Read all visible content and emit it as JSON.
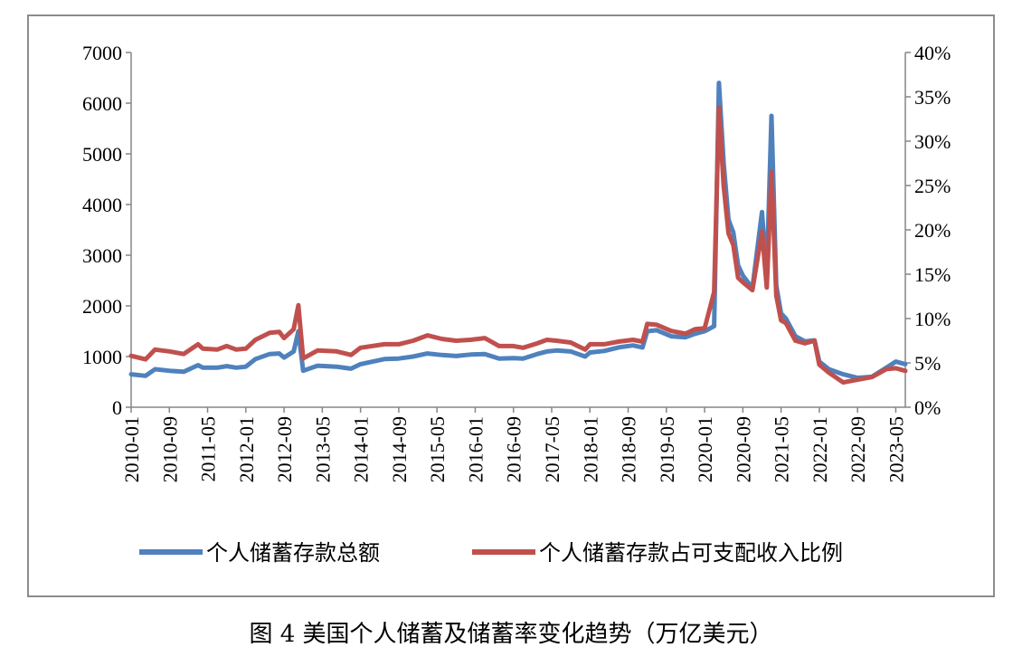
{
  "caption": "图 4 美国个人储蓄及储蓄率变化趋势（万亿美元）",
  "chart_data": {
    "type": "line",
    "title": "",
    "xlabel": "",
    "ylabel": "",
    "y_left_lim": [
      0,
      7000
    ],
    "y_left_ticks": [
      "0",
      "1000",
      "2000",
      "3000",
      "4000",
      "5000",
      "6000",
      "7000"
    ],
    "y_right_lim": [
      0,
      40
    ],
    "y_right_ticks": [
      "0%",
      "5%",
      "10%",
      "15%",
      "20%",
      "25%",
      "30%",
      "35%",
      "40%"
    ],
    "x_tick_labels": [
      "2010-01",
      "2010-09",
      "2011-05",
      "2012-01",
      "2012-09",
      "2013-05",
      "2014-01",
      "2014-09",
      "2015-05",
      "2016-01",
      "2016-09",
      "2017-05",
      "2018-01",
      "2018-09",
      "2019-05",
      "2020-01",
      "2020-09",
      "2021-05",
      "2022-01",
      "2022-09",
      "2023-05"
    ],
    "x_start": "2010-01",
    "grid": false,
    "legend_position": "bottom",
    "series": [
      {
        "name": "个人储蓄存款总额",
        "axis": "left",
        "color": "#4f81bd",
        "points": [
          [
            "2010-01",
            650
          ],
          [
            "2010-04",
            620
          ],
          [
            "2010-06",
            750
          ],
          [
            "2010-09",
            720
          ],
          [
            "2010-12",
            700
          ],
          [
            "2011-03",
            830
          ],
          [
            "2011-04",
            780
          ],
          [
            "2011-07",
            780
          ],
          [
            "2011-09",
            810
          ],
          [
            "2011-11",
            780
          ],
          [
            "2012-01",
            800
          ],
          [
            "2012-03",
            950
          ],
          [
            "2012-06",
            1050
          ],
          [
            "2012-08",
            1060
          ],
          [
            "2012-09",
            980
          ],
          [
            "2012-11",
            1100
          ],
          [
            "2012-12",
            1500
          ],
          [
            "2013-01",
            720
          ],
          [
            "2013-04",
            820
          ],
          [
            "2013-08",
            800
          ],
          [
            "2013-11",
            760
          ],
          [
            "2014-01",
            850
          ],
          [
            "2014-06",
            950
          ],
          [
            "2014-09",
            960
          ],
          [
            "2014-12",
            1000
          ],
          [
            "2015-03",
            1060
          ],
          [
            "2015-06",
            1030
          ],
          [
            "2015-09",
            1010
          ],
          [
            "2015-12",
            1040
          ],
          [
            "2016-03",
            1050
          ],
          [
            "2016-06",
            960
          ],
          [
            "2016-09",
            970
          ],
          [
            "2016-11",
            960
          ],
          [
            "2017-02",
            1050
          ],
          [
            "2017-04",
            1100
          ],
          [
            "2017-06",
            1120
          ],
          [
            "2017-09",
            1100
          ],
          [
            "2017-12",
            1000
          ],
          [
            "2018-01",
            1080
          ],
          [
            "2018-04",
            1110
          ],
          [
            "2018-07",
            1180
          ],
          [
            "2018-10",
            1220
          ],
          [
            "2018-12",
            1180
          ],
          [
            "2019-01",
            1500
          ],
          [
            "2019-03",
            1520
          ],
          [
            "2019-06",
            1400
          ],
          [
            "2019-09",
            1380
          ],
          [
            "2019-11",
            1450
          ],
          [
            "2020-01",
            1500
          ],
          [
            "2020-03",
            1600
          ],
          [
            "2020-04",
            6400
          ],
          [
            "2020-05",
            4800
          ],
          [
            "2020-06",
            3700
          ],
          [
            "2020-07",
            3450
          ],
          [
            "2020-08",
            2800
          ],
          [
            "2020-09",
            2600
          ],
          [
            "2020-11",
            2350
          ],
          [
            "2021-01",
            3850
          ],
          [
            "2021-02",
            2600
          ],
          [
            "2021-03",
            5750
          ],
          [
            "2021-04",
            2400
          ],
          [
            "2021-05",
            1850
          ],
          [
            "2021-06",
            1750
          ],
          [
            "2021-08",
            1400
          ],
          [
            "2021-10",
            1300
          ],
          [
            "2021-12",
            1320
          ],
          [
            "2022-01",
            900
          ],
          [
            "2022-03",
            750
          ],
          [
            "2022-06",
            650
          ],
          [
            "2022-09",
            580
          ],
          [
            "2022-12",
            600
          ],
          [
            "2023-03",
            780
          ],
          [
            "2023-05",
            900
          ],
          [
            "2023-07",
            850
          ]
        ]
      },
      {
        "name": "个人储蓄存款占可支配收入比例",
        "axis": "right",
        "color": "#c0504d",
        "points": [
          [
            "2010-01",
            5.8
          ],
          [
            "2010-04",
            5.4
          ],
          [
            "2010-06",
            6.5
          ],
          [
            "2010-09",
            6.3
          ],
          [
            "2010-12",
            6.0
          ],
          [
            "2011-03",
            7.1
          ],
          [
            "2011-04",
            6.6
          ],
          [
            "2011-07",
            6.5
          ],
          [
            "2011-09",
            6.9
          ],
          [
            "2011-11",
            6.5
          ],
          [
            "2012-01",
            6.6
          ],
          [
            "2012-03",
            7.6
          ],
          [
            "2012-06",
            8.4
          ],
          [
            "2012-08",
            8.5
          ],
          [
            "2012-09",
            7.8
          ],
          [
            "2012-11",
            8.8
          ],
          [
            "2012-12",
            11.5
          ],
          [
            "2013-01",
            5.5
          ],
          [
            "2013-04",
            6.4
          ],
          [
            "2013-08",
            6.3
          ],
          [
            "2013-11",
            5.9
          ],
          [
            "2014-01",
            6.7
          ],
          [
            "2014-06",
            7.1
          ],
          [
            "2014-09",
            7.1
          ],
          [
            "2014-12",
            7.5
          ],
          [
            "2015-03",
            8.1
          ],
          [
            "2015-06",
            7.7
          ],
          [
            "2015-09",
            7.5
          ],
          [
            "2015-12",
            7.6
          ],
          [
            "2016-03",
            7.8
          ],
          [
            "2016-06",
            6.9
          ],
          [
            "2016-09",
            6.9
          ],
          [
            "2016-11",
            6.7
          ],
          [
            "2017-02",
            7.2
          ],
          [
            "2017-04",
            7.6
          ],
          [
            "2017-06",
            7.5
          ],
          [
            "2017-09",
            7.3
          ],
          [
            "2017-12",
            6.5
          ],
          [
            "2018-01",
            7.1
          ],
          [
            "2018-04",
            7.1
          ],
          [
            "2018-07",
            7.4
          ],
          [
            "2018-10",
            7.6
          ],
          [
            "2018-12",
            7.4
          ],
          [
            "2019-01",
            9.4
          ],
          [
            "2019-03",
            9.3
          ],
          [
            "2019-06",
            8.6
          ],
          [
            "2019-09",
            8.3
          ],
          [
            "2019-11",
            8.8
          ],
          [
            "2020-01",
            8.9
          ],
          [
            "2020-03",
            13.0
          ],
          [
            "2020-04",
            33.8
          ],
          [
            "2020-05",
            24.9
          ],
          [
            "2020-06",
            19.6
          ],
          [
            "2020-07",
            18.3
          ],
          [
            "2020-08",
            14.6
          ],
          [
            "2020-09",
            14.1
          ],
          [
            "2020-11",
            13.2
          ],
          [
            "2021-01",
            19.8
          ],
          [
            "2021-02",
            13.5
          ],
          [
            "2021-03",
            26.5
          ],
          [
            "2021-04",
            12.6
          ],
          [
            "2021-05",
            9.8
          ],
          [
            "2021-06",
            9.5
          ],
          [
            "2021-08",
            7.5
          ],
          [
            "2021-10",
            7.2
          ],
          [
            "2021-12",
            7.5
          ],
          [
            "2022-01",
            4.8
          ],
          [
            "2022-03",
            3.9
          ],
          [
            "2022-06",
            2.8
          ],
          [
            "2022-09",
            3.1
          ],
          [
            "2022-12",
            3.4
          ],
          [
            "2023-03",
            4.3
          ],
          [
            "2023-05",
            4.4
          ],
          [
            "2023-07",
            4.1
          ]
        ]
      }
    ]
  }
}
